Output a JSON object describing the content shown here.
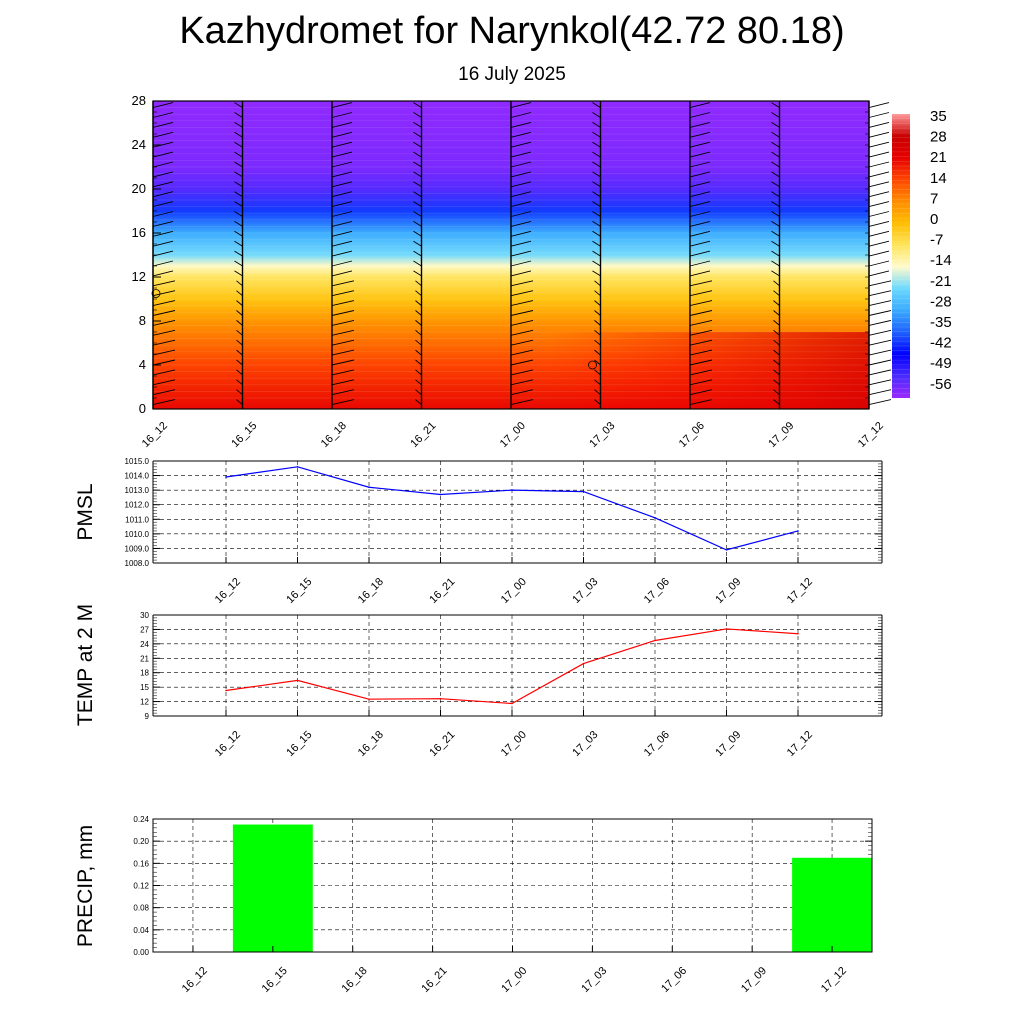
{
  "title": "Kazhydromet for Narynkol(42.72 80.18)",
  "subtitle": "16 July 2025",
  "colors": {
    "pmsl_line": "#0000ff",
    "temp_line": "#ff0000",
    "precip_bar": "#00ff00",
    "colorbar": [
      "#9a2aff",
      "#4a2aff",
      "#0000ff",
      "#1e60ff",
      "#39a9ff",
      "#6ad8ff",
      "#fffacd",
      "#ffe45a",
      "#ffbd00",
      "#ff8c00",
      "#ff4500",
      "#e60000",
      "#c80000",
      "#ff9b9b"
    ]
  },
  "chart_data": [
    {
      "type": "heatmap",
      "name_key": "upper_air",
      "x_ticks": [
        "16_12",
        "16_15",
        "16_18",
        "16_21",
        "17_00",
        "17_03",
        "17_06",
        "17_09",
        "17_12"
      ],
      "ylim": [
        0,
        28
      ],
      "y_ticks": [
        "0",
        "4",
        "8",
        "12",
        "16",
        "20",
        "24",
        "28"
      ],
      "colorbar_labels": [
        "35",
        "28",
        "21",
        "14",
        "7",
        "0",
        "-7",
        "-14",
        "-21",
        "-28",
        "-35",
        "-42",
        "-49",
        "-56"
      ],
      "colorbar_range": [
        -63,
        42
      ],
      "temperature_profile": [
        {
          "level": 0,
          "value": 25
        },
        {
          "level": 4,
          "value": 18
        },
        {
          "level": 8,
          "value": 8
        },
        {
          "level": 10,
          "value": 0
        },
        {
          "level": 12,
          "value": -7
        },
        {
          "level": 13,
          "value": -14
        },
        {
          "level": 14,
          "value": -22
        },
        {
          "level": 16,
          "value": -30
        },
        {
          "level": 18,
          "value": -42
        },
        {
          "level": 20,
          "value": -56
        },
        {
          "level": 21,
          "value": -58
        },
        {
          "level": 22,
          "value": -60
        },
        {
          "level": 28,
          "value": -62
        }
      ],
      "annotation_circles": [
        [
          "16_12",
          10.5
        ],
        [
          "17_03",
          4
        ]
      ]
    },
    {
      "type": "line",
      "name_key": "pmsl",
      "ylabel": "PMSL",
      "categories": [
        "16_12",
        "16_15",
        "16_18",
        "16_21",
        "17_00",
        "17_03",
        "17_06",
        "17_09",
        "17_12"
      ],
      "values": [
        1013.9,
        1014.6,
        1013.2,
        1012.7,
        1013.0,
        1012.9,
        1011.1,
        1008.9,
        1010.2
      ],
      "ylim": [
        1008.0,
        1015.0
      ],
      "y_ticks": [
        "1008.0",
        "1009.0",
        "1010.0",
        "1011.0",
        "1012.0",
        "1013.0",
        "1014.0",
        "1015.0"
      ],
      "grid": true
    },
    {
      "type": "line",
      "name_key": "temp",
      "ylabel": "TEMP at 2 M",
      "categories": [
        "16_12",
        "16_15",
        "16_18",
        "16_21",
        "17_00",
        "17_03",
        "17_06",
        "17_09",
        "17_12"
      ],
      "values": [
        14.3,
        16.4,
        12.5,
        12.6,
        11.6,
        19.9,
        24.7,
        27.1,
        26.1
      ],
      "ylim": [
        9,
        30
      ],
      "y_ticks": [
        "9",
        "12",
        "15",
        "18",
        "21",
        "24",
        "27",
        "30"
      ],
      "grid": true
    },
    {
      "type": "bar",
      "name_key": "precip",
      "ylabel": "PRECIP, mm",
      "categories": [
        "16_12",
        "16_15",
        "16_18",
        "16_21",
        "17_00",
        "17_03",
        "17_06",
        "17_09",
        "17_12"
      ],
      "values": [
        0,
        0.23,
        0,
        0,
        0,
        0,
        0,
        0,
        0.17
      ],
      "ylim": [
        0,
        0.24
      ],
      "y_ticks": [
        "0.00",
        "0.04",
        "0.08",
        "0.12",
        "0.16",
        "0.20",
        "0.24"
      ],
      "grid": true
    }
  ]
}
